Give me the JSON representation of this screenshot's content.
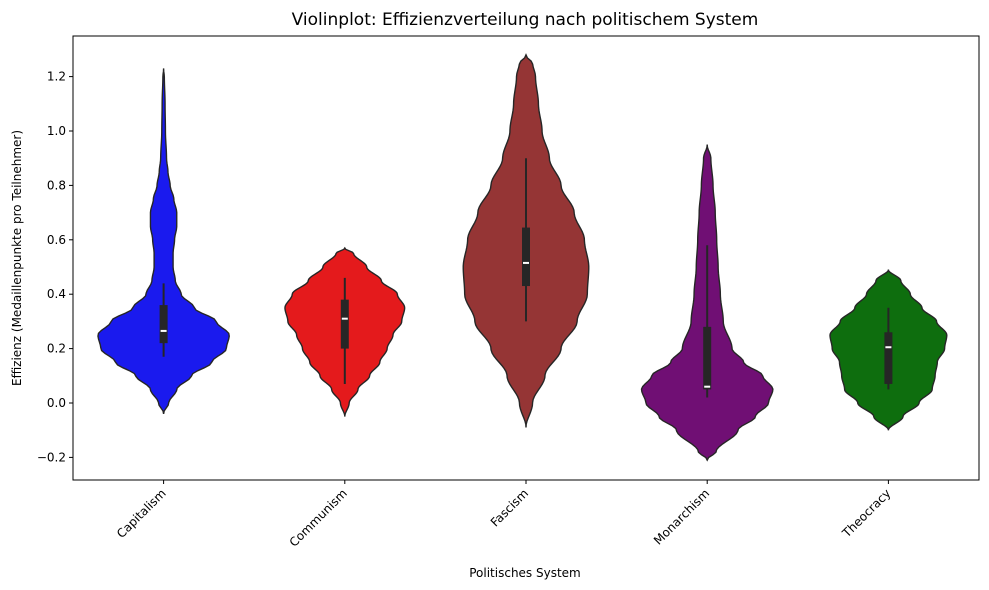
{
  "chart_data": {
    "type": "violin",
    "title": "Violinplot: Effizienzverteilung nach politischem System",
    "xlabel": "Politisches System",
    "ylabel": "Effizienz (Medaillenpunkte pro Teilnehmer)",
    "ylim": [
      -0.28,
      1.36
    ],
    "yticks": [
      -0.2,
      0.0,
      0.2,
      0.4,
      0.6,
      0.8,
      1.0,
      1.2
    ],
    "ytick_labels": [
      "−0.2",
      "0.0",
      "0.2",
      "0.4",
      "0.6",
      "0.8",
      "1.0",
      "1.2"
    ],
    "grid": false,
    "legend": "none",
    "categories": [
      "Capitalism",
      "Communism",
      "Fascism",
      "Monarchism",
      "Theocracy"
    ],
    "series": [
      {
        "category": "Capitalism",
        "color": "#1a1aee",
        "range": [
          -0.04,
          1.23
        ],
        "box": {
          "whisker_low": 0.17,
          "q1": 0.22,
          "median": 0.265,
          "q3": 0.36,
          "whisker_high": 0.44
        },
        "profile": [
          [
            -0.04,
            0.0
          ],
          [
            0.0,
            0.07
          ],
          [
            0.05,
            0.18
          ],
          [
            0.1,
            0.38
          ],
          [
            0.15,
            0.66
          ],
          [
            0.2,
            0.86
          ],
          [
            0.25,
            0.9
          ],
          [
            0.3,
            0.72
          ],
          [
            0.35,
            0.42
          ],
          [
            0.4,
            0.24
          ],
          [
            0.45,
            0.16
          ],
          [
            0.5,
            0.13
          ],
          [
            0.55,
            0.13
          ],
          [
            0.6,
            0.15
          ],
          [
            0.65,
            0.18
          ],
          [
            0.7,
            0.18
          ],
          [
            0.75,
            0.14
          ],
          [
            0.8,
            0.09
          ],
          [
            0.85,
            0.06
          ],
          [
            0.9,
            0.04
          ],
          [
            1.0,
            0.025
          ],
          [
            1.1,
            0.02
          ],
          [
            1.2,
            0.01
          ],
          [
            1.23,
            0.0
          ]
        ]
      },
      {
        "category": "Communism",
        "color": "#e41a1c",
        "range": [
          -0.05,
          0.57
        ],
        "box": {
          "whisker_low": 0.07,
          "q1": 0.2,
          "median": 0.31,
          "q3": 0.38,
          "whisker_high": 0.46
        },
        "profile": [
          [
            -0.05,
            0.0
          ],
          [
            0.0,
            0.06
          ],
          [
            0.05,
            0.18
          ],
          [
            0.1,
            0.34
          ],
          [
            0.15,
            0.48
          ],
          [
            0.2,
            0.58
          ],
          [
            0.25,
            0.66
          ],
          [
            0.3,
            0.78
          ],
          [
            0.35,
            0.82
          ],
          [
            0.4,
            0.72
          ],
          [
            0.45,
            0.5
          ],
          [
            0.5,
            0.3
          ],
          [
            0.55,
            0.12
          ],
          [
            0.57,
            0.0
          ]
        ]
      },
      {
        "category": "Fascism",
        "color": "#953535",
        "range": [
          -0.09,
          1.28
        ],
        "box": {
          "whisker_low": 0.3,
          "q1": 0.43,
          "median": 0.515,
          "q3": 0.645,
          "whisker_high": 0.9
        },
        "profile": [
          [
            -0.09,
            0.0
          ],
          [
            0.0,
            0.09
          ],
          [
            0.1,
            0.26
          ],
          [
            0.2,
            0.48
          ],
          [
            0.3,
            0.7
          ],
          [
            0.4,
            0.84
          ],
          [
            0.5,
            0.86
          ],
          [
            0.6,
            0.8
          ],
          [
            0.7,
            0.66
          ],
          [
            0.8,
            0.48
          ],
          [
            0.9,
            0.32
          ],
          [
            1.0,
            0.22
          ],
          [
            1.1,
            0.17
          ],
          [
            1.2,
            0.13
          ],
          [
            1.25,
            0.09
          ],
          [
            1.28,
            0.0
          ]
        ]
      },
      {
        "category": "Monarchism",
        "color": "#700f74",
        "range": [
          -0.21,
          0.95
        ],
        "box": {
          "whisker_low": 0.02,
          "q1": 0.05,
          "median": 0.06,
          "q3": 0.28,
          "whisker_high": 0.58
        },
        "profile": [
          [
            -0.21,
            0.0
          ],
          [
            -0.18,
            0.12
          ],
          [
            -0.1,
            0.42
          ],
          [
            -0.05,
            0.66
          ],
          [
            0.0,
            0.84
          ],
          [
            0.05,
            0.9
          ],
          [
            0.1,
            0.76
          ],
          [
            0.15,
            0.5
          ],
          [
            0.2,
            0.34
          ],
          [
            0.3,
            0.22
          ],
          [
            0.4,
            0.18
          ],
          [
            0.5,
            0.15
          ],
          [
            0.6,
            0.13
          ],
          [
            0.7,
            0.11
          ],
          [
            0.8,
            0.08
          ],
          [
            0.9,
            0.05
          ],
          [
            0.95,
            0.0
          ]
        ]
      },
      {
        "category": "Theocracy",
        "color": "#0e6e0e",
        "range": [
          -0.1,
          0.49
        ],
        "box": {
          "whisker_low": 0.05,
          "q1": 0.07,
          "median": 0.205,
          "q3": 0.26,
          "whisker_high": 0.35
        },
        "profile": [
          [
            -0.1,
            0.0
          ],
          [
            -0.05,
            0.2
          ],
          [
            0.0,
            0.42
          ],
          [
            0.05,
            0.6
          ],
          [
            0.1,
            0.64
          ],
          [
            0.15,
            0.67
          ],
          [
            0.2,
            0.77
          ],
          [
            0.25,
            0.8
          ],
          [
            0.3,
            0.66
          ],
          [
            0.35,
            0.46
          ],
          [
            0.4,
            0.3
          ],
          [
            0.45,
            0.17
          ],
          [
            0.49,
            0.0
          ]
        ]
      }
    ]
  }
}
